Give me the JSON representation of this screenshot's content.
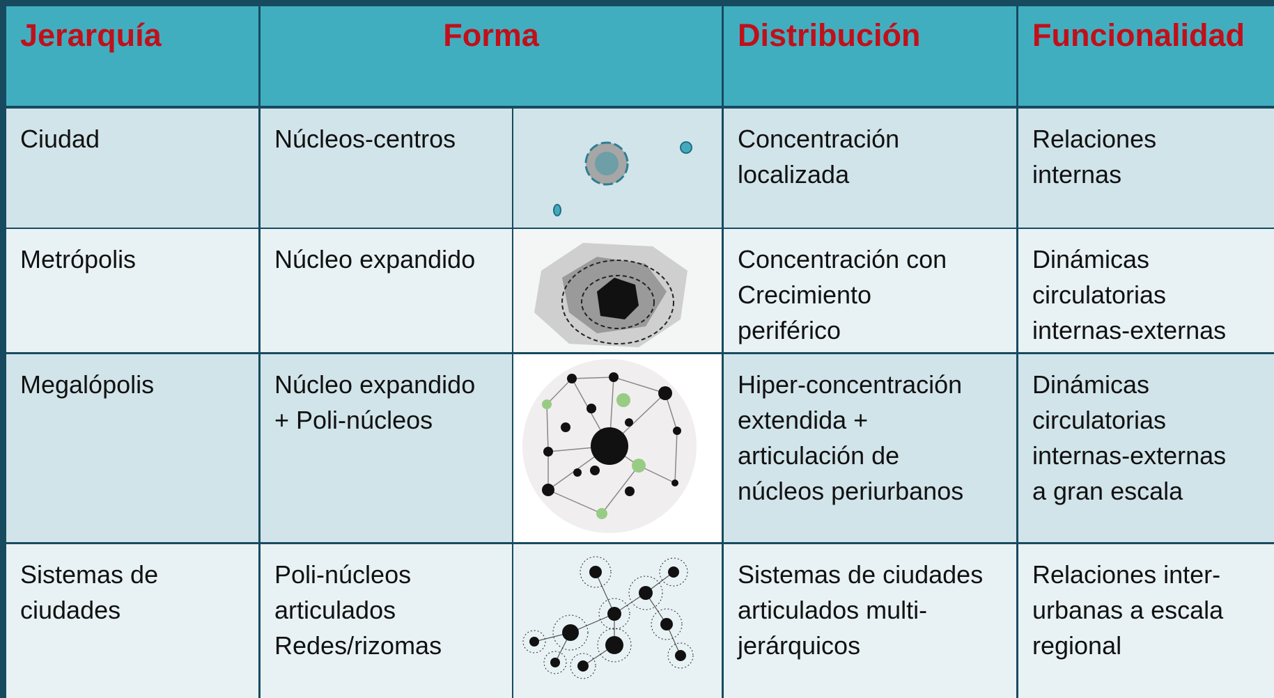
{
  "table": {
    "header": [
      "Jerarquía",
      "Forma",
      "Distribución",
      "Funcionalidad"
    ],
    "rows": [
      [
        "Ciudad",
        "Núcleos-centros",
        "Concentración\nlocalizada",
        "Relaciones\ninternas"
      ],
      [
        "Metrópolis",
        "Núcleo expandido",
        "Concentración con\nCrecimiento\nperiférico",
        "Dinámicas\ncirculatorias\ninternas-externas"
      ],
      [
        "Megalópolis",
        "Núcleo expandido\n+ Poli-núcleos",
        "Hiper-concentración\nextendida +\narticulación de\nnúcleos periurbanos",
        "Dinámicas\ncirculatorias\ninternas-externas\na gran escala"
      ],
      [
        "Sistemas de\nciudades",
        "Poli-núcleos\narticulados\nRedes/rizomas",
        "Sistemas de ciudades\narticulados multi-\njerárquicos",
        "Relaciones inter-\nurbanas a escala\nregional"
      ]
    ]
  }
}
